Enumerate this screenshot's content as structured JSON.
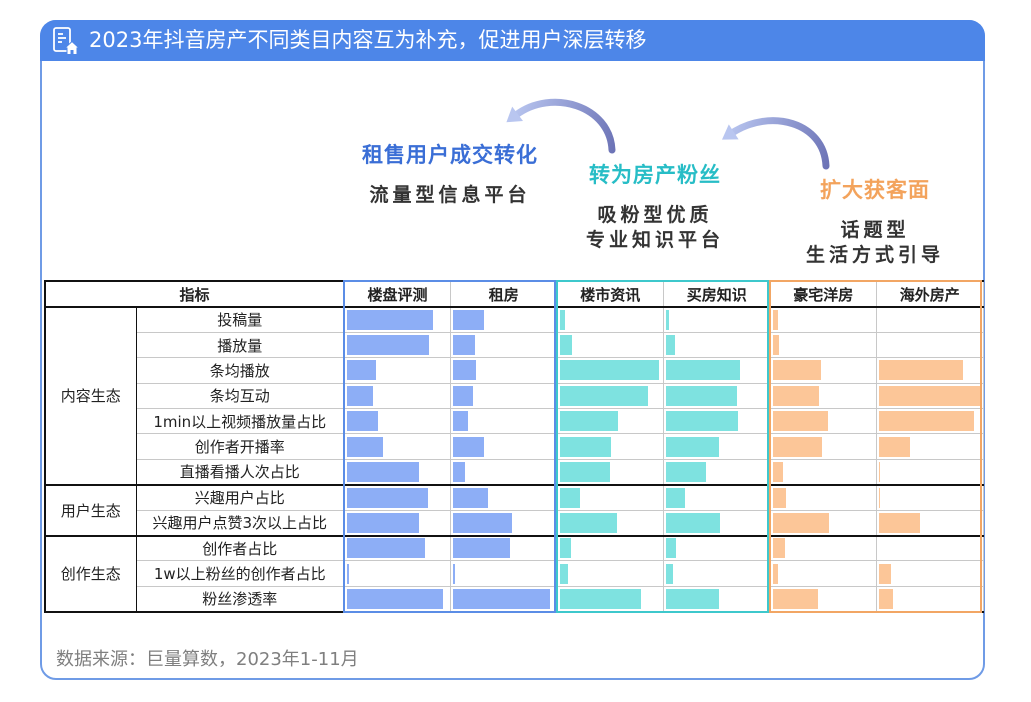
{
  "header": {
    "title": "2023年抖音房产不同类目内容互为补充，促进用户深层转移",
    "icon": "building-document-icon"
  },
  "segments": [
    {
      "headline": "租售用户成交转化",
      "desc_lines": [
        "流量型信息平台"
      ],
      "color": "#3a6ed6",
      "frame_color": "#5b8de6"
    },
    {
      "headline": "转为房产粉丝",
      "desc_lines": [
        "吸粉型优质",
        "专业知识平台"
      ],
      "color": "#27bdc6",
      "frame_color": "#3ec8cc"
    },
    {
      "headline": "扩大获客面",
      "desc_lines": [
        "话题型",
        "生活方式引导"
      ],
      "color": "#f3a35c",
      "frame_color": "#f2a664"
    }
  ],
  "arrows": [
    {
      "icon": "curved-arrow-left-icon"
    },
    {
      "icon": "curved-arrow-left-icon"
    }
  ],
  "table": {
    "indicator_label": "指标"
  },
  "chart_data": {
    "type": "bar",
    "orientation": "horizontal",
    "row_groups": [
      {
        "name": "内容生态",
        "categories": [
          "投稿量",
          "播放量",
          "条均播放",
          "条均互动",
          "1min以上视频播放量占比",
          "创作者开播率",
          "直播看播人次占比"
        ]
      },
      {
        "name": "用户生态",
        "categories": [
          "兴趣用户占比",
          "兴趣用户点赞3次以上占比"
        ]
      },
      {
        "name": "创作生态",
        "categories": [
          "创作者占比",
          "1w以上粉丝的创作者占比",
          "粉丝渗透率"
        ]
      }
    ],
    "series": [
      {
        "name": "楼盘评测",
        "color": "#8daef6",
        "values": [
          0.85,
          0.81,
          0.29,
          0.26,
          0.31,
          0.36,
          0.71,
          0.8,
          0.71,
          0.77,
          0.02,
          0.95
        ]
      },
      {
        "name": "租房",
        "color": "#8daef6",
        "values": [
          0.31,
          0.22,
          0.23,
          0.2,
          0.15,
          0.31,
          0.12,
          0.34,
          0.58,
          0.56,
          0.02,
          0.96
        ]
      },
      {
        "name": "楼市资讯",
        "color": "#7ee2e0",
        "values": [
          0.05,
          0.12,
          0.98,
          0.87,
          0.58,
          0.51,
          0.5,
          0.2,
          0.57,
          0.11,
          0.08,
          0.8
        ]
      },
      {
        "name": "买房知识",
        "color": "#7ee2e0",
        "values": [
          0.03,
          0.09,
          0.73,
          0.7,
          0.71,
          0.52,
          0.39,
          0.19,
          0.53,
          0.1,
          0.07,
          0.52
        ]
      },
      {
        "name": "豪宅洋房",
        "color": "#fcc698",
        "values": [
          0.05,
          0.06,
          0.48,
          0.46,
          0.55,
          0.49,
          0.1,
          0.13,
          0.56,
          0.12,
          0.05,
          0.45
        ]
      },
      {
        "name": "海外房产",
        "color": "#fcc698",
        "values": [
          0,
          0,
          0.83,
          1.0,
          0.94,
          0.31,
          0.01,
          0.01,
          0.4,
          0,
          0.12,
          0.14
        ]
      }
    ]
  },
  "footer": {
    "source": "数据来源：巨量算数，2023年1-11月"
  },
  "colors": {
    "header_bar": "#4d86e8",
    "card_border": "#6f9be6",
    "table_line": "#111111",
    "grid_line": "#c8c8c8",
    "footer_text": "#7f7f7f"
  }
}
